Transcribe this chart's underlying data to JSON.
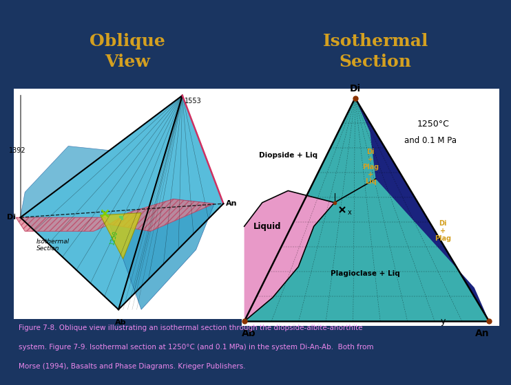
{
  "bg_color": "#1a3561",
  "title_left": "Oblique\nView",
  "title_right": "Isothermal\nSection",
  "title_color": "#d4a020",
  "teal_color": "#3aaeae",
  "dark_blue_color": "#1a237e",
  "pink_color": "#e899c8",
  "red_hatch_color": "#d06060",
  "blue_surf_color": "#4ab0d4",
  "temp_label": "1250°C",
  "pressure_label": "and 0.1 M Pa",
  "label_1553": "1553",
  "label_1392": "1392",
  "label_iso": "Isothermal\nSection",
  "label_diopside_liq": "Diopside + Liq",
  "label_plagioclase_liq": "Plagioclase + Liq",
  "label_liquid": "Liquid",
  "label_di_plag_liq": "Di\n+\nPlag\n+\nLiq",
  "label_di_plag": "Di\n+\nPlag",
  "caption_color": "#ee88ee",
  "caption_bold_color": "#ee88ee"
}
